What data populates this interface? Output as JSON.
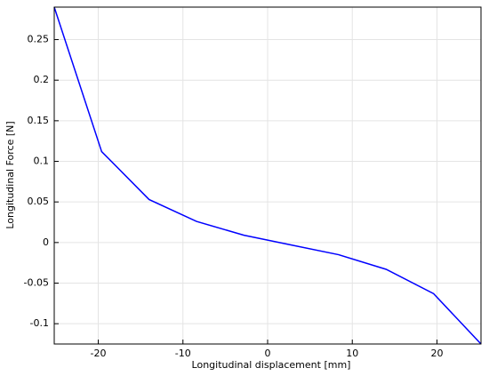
{
  "chart_data": {
    "type": "line",
    "x_label": "Longitudinal displacement [mm]",
    "y_label": "Longitudinal Force  [N]",
    "x": [
      -25.2,
      -19.6,
      -14,
      -8.4,
      -2.8,
      2.8,
      8.4,
      14,
      19.6,
      25.2
    ],
    "series": [
      {
        "name": "Force",
        "color": "#0000ff",
        "values": [
          0.29,
          0.112,
          0.053,
          0.026,
          0.009,
          -0.003,
          -0.015,
          -0.033,
          -0.063,
          -0.125
        ]
      }
    ],
    "xlim": [
      -25.2,
      25.2
    ],
    "xticks": [
      -20,
      -10,
      0,
      10,
      20
    ],
    "ylim": [
      -0.125,
      0.29
    ],
    "yticks": [
      -0.1,
      -0.05,
      0,
      0.05,
      0.1,
      0.15,
      0.2,
      0.25
    ],
    "grid": true
  }
}
